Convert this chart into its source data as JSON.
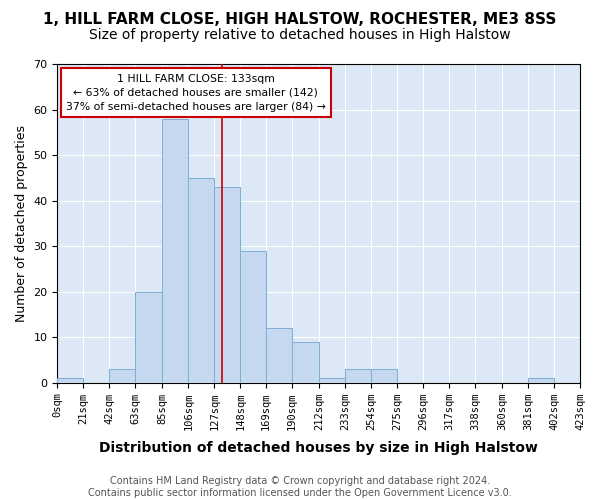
{
  "title1": "1, HILL FARM CLOSE, HIGH HALSTOW, ROCHESTER, ME3 8SS",
  "title2": "Size of property relative to detached houses in High Halstow",
  "xlabel": "Distribution of detached houses by size in High Halstow",
  "ylabel": "Number of detached properties",
  "bin_labels": [
    "0sqm",
    "21sqm",
    "42sqm",
    "63sqm",
    "85sqm",
    "106sqm",
    "127sqm",
    "148sqm",
    "169sqm",
    "190sqm",
    "212sqm",
    "233sqm",
    "254sqm",
    "275sqm",
    "296sqm",
    "317sqm",
    "338sqm",
    "360sqm",
    "381sqm",
    "402sqm",
    "423sqm"
  ],
  "bin_edges": [
    0,
    21,
    42,
    63,
    85,
    106,
    127,
    148,
    169,
    190,
    212,
    233,
    254,
    275,
    296,
    317,
    338,
    360,
    381,
    402,
    423
  ],
  "bar_heights": [
    1,
    0,
    3,
    20,
    58,
    45,
    43,
    29,
    12,
    9,
    1,
    3,
    3,
    0,
    0,
    0,
    0,
    0,
    1,
    0
  ],
  "bar_color": "#c5d8f0",
  "bar_edge_color": "#7bafd4",
  "property_value": 133,
  "vline_color": "#cc0000",
  "annotation_text": "1 HILL FARM CLOSE: 133sqm\n← 63% of detached houses are smaller (142)\n37% of semi-detached houses are larger (84) →",
  "annotation_box_color": "#ffffff",
  "annotation_box_edge": "#cc0000",
  "ylim": [
    0,
    70
  ],
  "yticks": [
    0,
    10,
    20,
    30,
    40,
    50,
    60,
    70
  ],
  "background_color": "#dce8f5",
  "footer_text": "Contains HM Land Registry data © Crown copyright and database right 2024.\nContains public sector information licensed under the Open Government Licence v3.0.",
  "title_fontsize": 11,
  "subtitle_fontsize": 10,
  "xlabel_fontsize": 10,
  "ylabel_fontsize": 9,
  "tick_fontsize": 7.5,
  "footer_fontsize": 7
}
